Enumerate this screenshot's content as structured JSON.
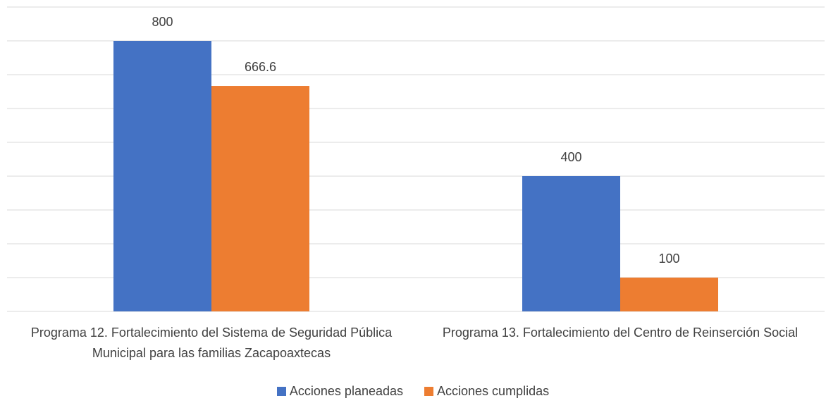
{
  "chart_data": {
    "type": "bar",
    "categories": [
      "Programa 12. Fortalecimiento del Sistema de Seguridad Pública Municipal para las familias Zacapoaxtecas",
      "Programa 13. Fortalecimiento del Centro de Reinserción Social"
    ],
    "series": [
      {
        "name": "Acciones planeadas",
        "color": "#4472c4",
        "values": [
          800,
          400
        ]
      },
      {
        "name": "Acciones cumplidas",
        "color": "#ed7d31",
        "values": [
          666.6,
          100
        ]
      }
    ],
    "ylim": [
      0,
      900
    ],
    "yticks": [
      0,
      100,
      200,
      300,
      400,
      500,
      600,
      700,
      800,
      900
    ],
    "grid": true
  }
}
